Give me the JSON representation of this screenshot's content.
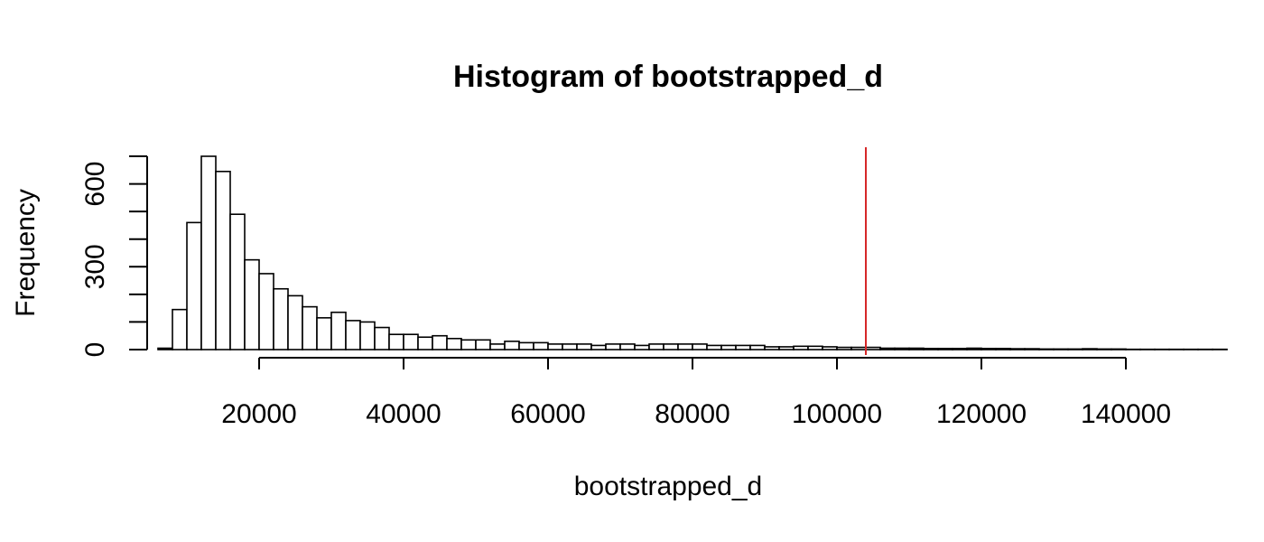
{
  "chart_data": {
    "type": "bar",
    "title": "Histogram of bootstrapped_d",
    "xlabel": "bootstrapped_d",
    "ylabel": "Frequency",
    "xlim": [
      5000,
      145000
    ],
    "ylim": [
      0,
      700
    ],
    "x_ticks": [
      20000,
      40000,
      60000,
      80000,
      100000,
      120000,
      140000
    ],
    "y_ticks": [
      0,
      300,
      600
    ],
    "y_minor_ticks": [
      0,
      100,
      200,
      300,
      400,
      500,
      600,
      700
    ],
    "bin_width": 2000,
    "bin_start": 6000,
    "counts": [
      5,
      145,
      460,
      700,
      645,
      490,
      325,
      275,
      220,
      195,
      155,
      115,
      135,
      105,
      100,
      80,
      55,
      55,
      45,
      50,
      40,
      35,
      35,
      20,
      30,
      25,
      25,
      20,
      20,
      20,
      15,
      20,
      20,
      15,
      20,
      20,
      20,
      20,
      15,
      15,
      15,
      15,
      10,
      10,
      12,
      12,
      10,
      8,
      8,
      8,
      5,
      5,
      5,
      4,
      4,
      4,
      5,
      4,
      4,
      3,
      3,
      2,
      2,
      2,
      3,
      2,
      2,
      1,
      1,
      1,
      1,
      1,
      1,
      1
    ],
    "reference_line": {
      "x": 104000,
      "color": "#d62728"
    },
    "colors": {
      "bar_fill": "#ffffff",
      "bar_stroke": "#000000"
    },
    "grid": false,
    "legend": "none"
  }
}
